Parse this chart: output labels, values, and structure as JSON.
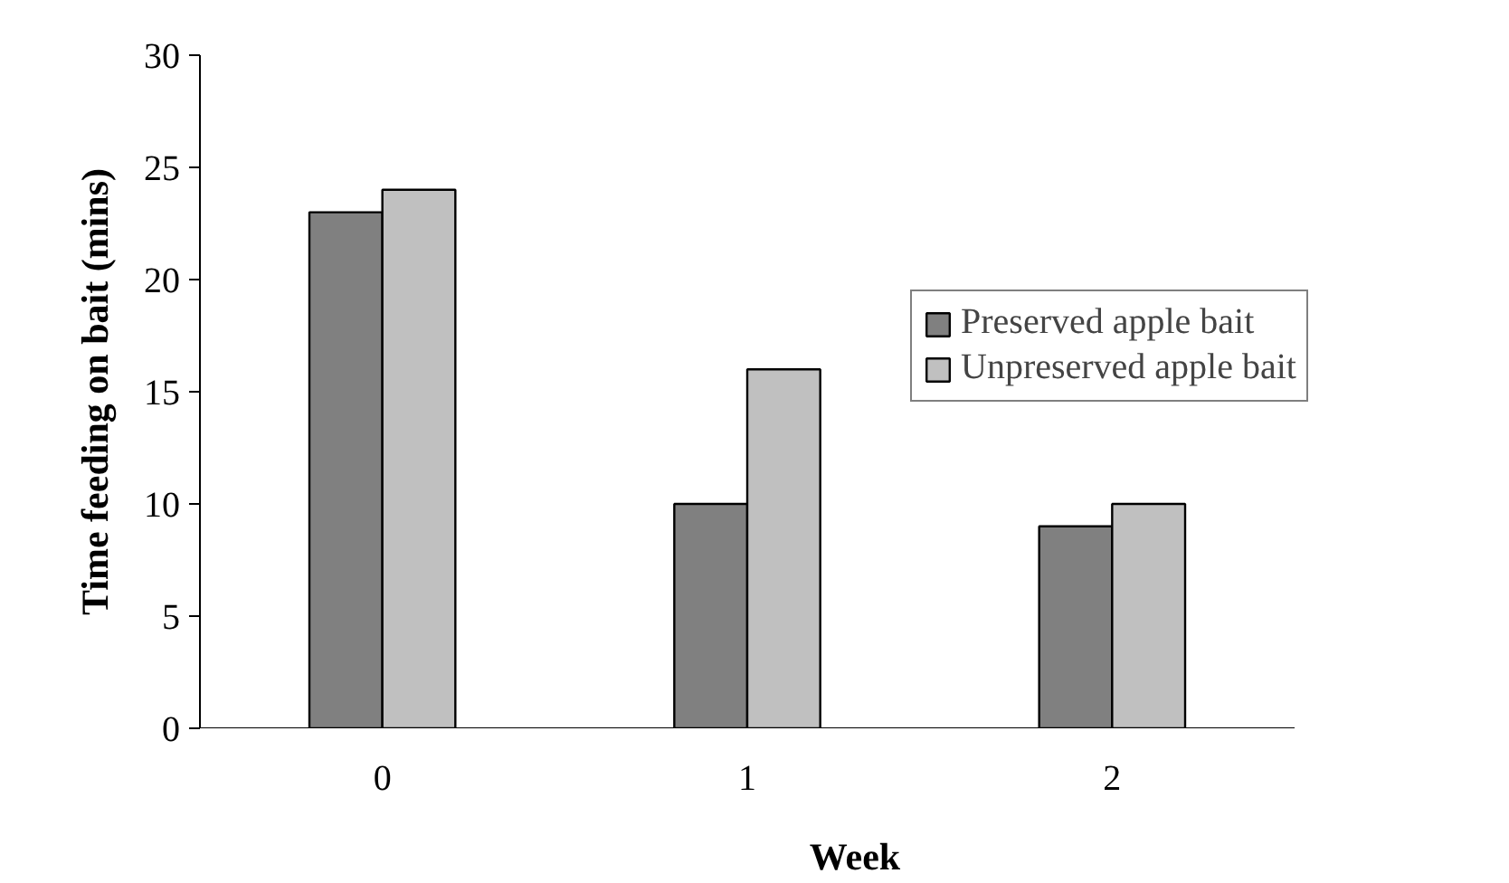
{
  "chart_data": {
    "type": "bar",
    "xlabel": "Week",
    "ylabel": "Time feeding on bait (mins)",
    "categories": [
      "0",
      "1",
      "2"
    ],
    "series": [
      {
        "name": "Preserved apple bait",
        "color": "#808080",
        "values": [
          23,
          10,
          9
        ]
      },
      {
        "name": "Unpreserved apple bait",
        "color": "#c0c0c0",
        "values": [
          24,
          16,
          10
        ]
      }
    ],
    "ylim": [
      0,
      30
    ],
    "yticks": [
      0,
      5,
      10,
      15,
      20,
      25,
      30
    ],
    "grid": false,
    "legend": "right"
  }
}
